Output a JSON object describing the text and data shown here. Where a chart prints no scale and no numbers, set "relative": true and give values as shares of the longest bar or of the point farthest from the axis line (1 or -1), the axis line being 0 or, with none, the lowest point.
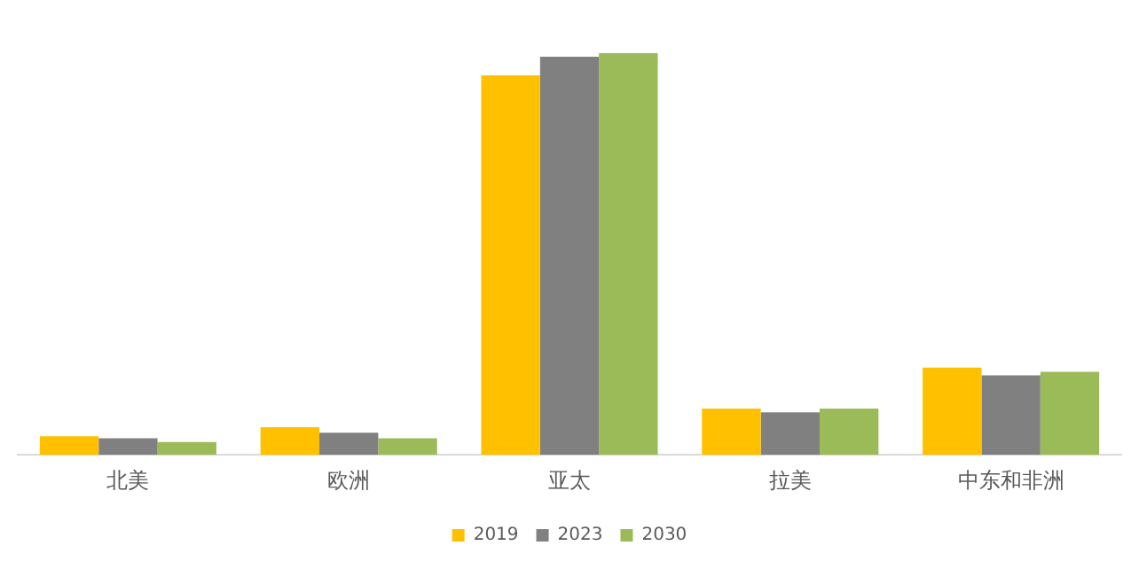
{
  "chart_data": {
    "type": "bar",
    "relative": true,
    "categories": [
      "北美",
      "欧洲",
      "亚太",
      "拉美",
      "中东和非洲"
    ],
    "series": [
      {
        "name": "2019",
        "color": "#ffc000",
        "values": [
          0.046,
          0.069,
          0.945,
          0.115,
          0.217
        ]
      },
      {
        "name": "2023",
        "color": "#808080",
        "values": [
          0.041,
          0.055,
          0.991,
          0.106,
          0.198
        ]
      },
      {
        "name": "2030",
        "color": "#9bbb59",
        "values": [
          0.032,
          0.041,
          1,
          0.115,
          0.207
        ]
      }
    ],
    "legend": "bottom",
    "grid": false
  }
}
